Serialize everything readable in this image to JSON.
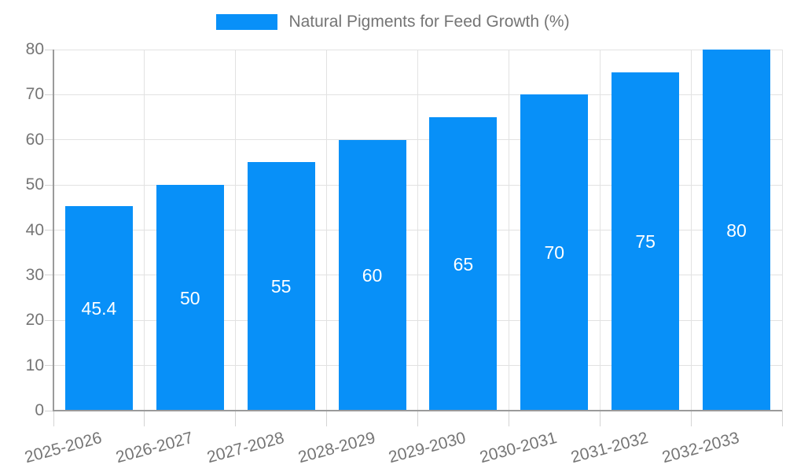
{
  "chart_data": {
    "type": "bar",
    "title": "Natural Pigments for Feed Growth (%)",
    "categories": [
      "2025-2026",
      "2026-2027",
      "2027-2028",
      "2028-2029",
      "2029-2030",
      "2030-2031",
      "2031-2032",
      "2032-2033"
    ],
    "values": [
      45.4,
      50,
      55,
      60,
      65,
      70,
      75,
      80
    ],
    "value_labels": [
      "45.4",
      "50",
      "55",
      "60",
      "65",
      "70",
      "75",
      "80"
    ],
    "xlabel": "",
    "ylabel": "",
    "ylim": [
      0,
      80
    ],
    "yticks": [
      0,
      10,
      20,
      30,
      40,
      50,
      60,
      70,
      80
    ],
    "grid": true,
    "legend_position": "top-center",
    "colors": {
      "bar": "#0890F8",
      "value_label": "#FFFFFF",
      "axis": "#9A9A9A",
      "grid": "#E2E2E2",
      "tick": "#D4D4D4",
      "text": "#757575",
      "background": "#FFFFFF"
    }
  }
}
